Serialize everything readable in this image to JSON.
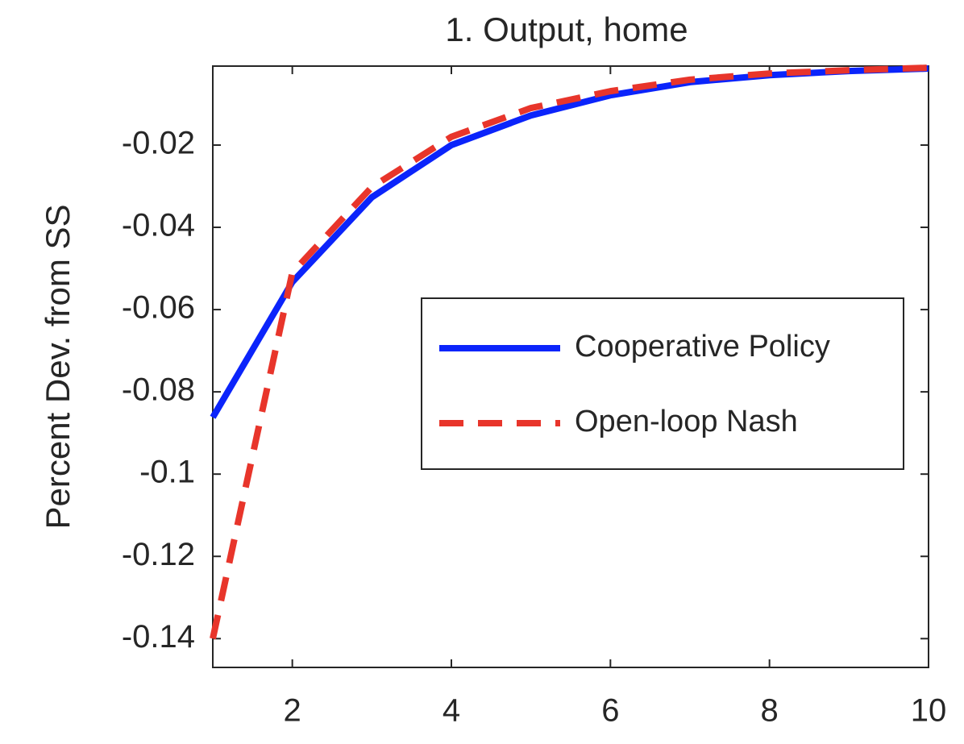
{
  "chart_data": {
    "type": "line",
    "title": "1. Output, home",
    "y_label": "Percent Dev. from SS",
    "x": [
      1,
      2,
      3,
      4,
      5,
      6,
      7,
      8,
      9,
      10
    ],
    "series": [
      {
        "name": "Cooperative Policy",
        "color": "#0b24fb",
        "style": "solid",
        "values": [
          -0.0862,
          -0.0533,
          -0.0327,
          -0.02,
          -0.0128,
          -0.0079,
          -0.0047,
          -0.003,
          -0.002,
          -0.0014
        ]
      },
      {
        "name": "Open-loop Nash",
        "color": "#e8352b",
        "style": "dashed",
        "values": [
          -0.14,
          -0.051,
          -0.0302,
          -0.018,
          -0.011,
          -0.0069,
          -0.0041,
          -0.0026,
          -0.0018,
          -0.0012
        ]
      }
    ],
    "xlim": [
      1,
      10
    ],
    "xticks": [
      2,
      4,
      6,
      8,
      10
    ],
    "ylim": [
      -0.147,
      -0.0008
    ],
    "yticks": [
      -0.14,
      -0.12,
      -0.1,
      -0.08,
      -0.06,
      -0.04,
      -0.02
    ],
    "grid": false,
    "legend": "right"
  }
}
